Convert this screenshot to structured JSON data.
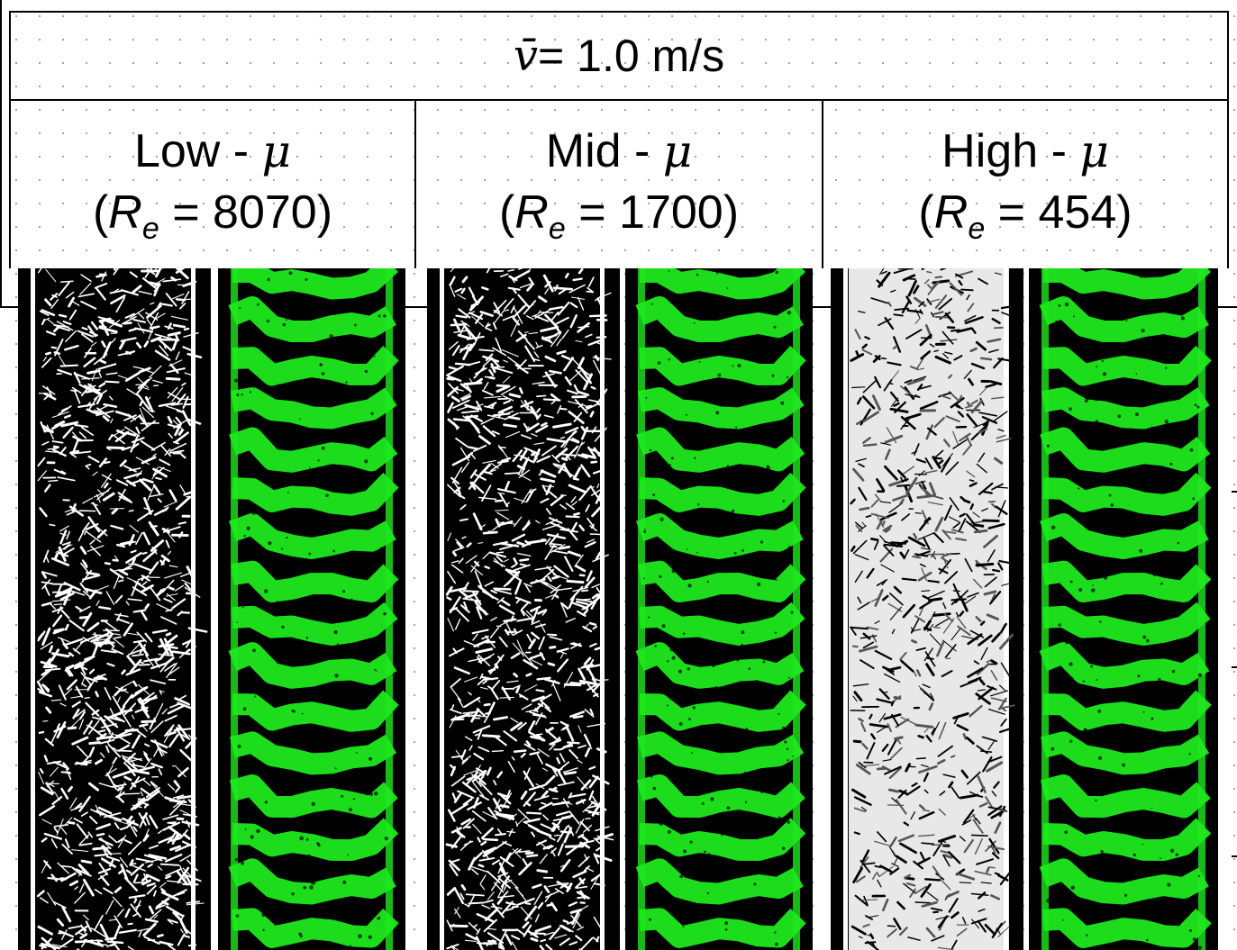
{
  "header": {
    "velocity_symbol": "v̄",
    "velocity_value": " = 1.0 m/s"
  },
  "columns": [
    {
      "name": "Low - ",
      "mu": "μ",
      "re_prefix": "(",
      "re_symbol": "R",
      "re_sub": "e",
      "re_value": " = 8070)"
    },
    {
      "name": "Mid - ",
      "mu": "μ",
      "re_prefix": "(",
      "re_symbol": "R",
      "re_sub": "e",
      "re_value": " = 1700)"
    },
    {
      "name": "High - ",
      "mu": "μ",
      "re_prefix": "(",
      "re_symbol": "R",
      "re_sub": "e",
      "re_value": " = 454)"
    }
  ],
  "colors": {
    "fringe_green": "#1ee81e",
    "background": "#000000",
    "pattern_white": "#ffffff"
  },
  "panels": [
    {
      "type": "schlieren-bw",
      "density": "medium"
    },
    {
      "type": "interferogram-green"
    },
    {
      "type": "schlieren-bw",
      "density": "medium"
    },
    {
      "type": "interferogram-green"
    },
    {
      "type": "schlieren-bw",
      "density": "high"
    },
    {
      "type": "interferogram-green"
    }
  ]
}
